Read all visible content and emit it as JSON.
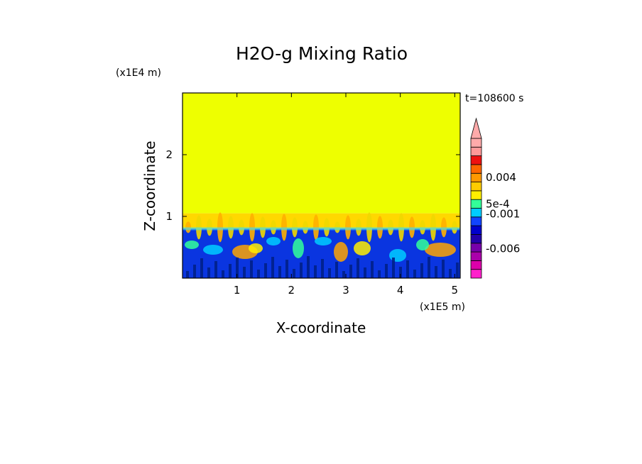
{
  "chart_data": {
    "type": "heatmap",
    "title": "H2O-g Mixing Ratio",
    "xlabel": "X-coordinate",
    "ylabel": "Z-coordinate",
    "x_unit": "(x1E5 m)",
    "y_unit": "(x1E4 m)",
    "time_label": "t=108600 s",
    "xlim": [
      0,
      5.1
    ],
    "ylim": [
      0,
      3.0
    ],
    "x_ticks": [
      "1",
      "2",
      "3",
      "4",
      "5"
    ],
    "x_tick_values": [
      1,
      2,
      3,
      4,
      5
    ],
    "y_ticks": [
      "1",
      "2"
    ],
    "y_tick_values": [
      1,
      2
    ],
    "layers": [
      {
        "level": "upper",
        "z_from": 1.05,
        "z_to": 3.0,
        "color": "#eeff00"
      },
      {
        "level": "transition",
        "z_from": 0.8,
        "z_to": 1.05,
        "color": "#ffd800"
      },
      {
        "level": "lower",
        "z_from": 0.0,
        "z_to": 0.8,
        "color": "#0a35e0"
      }
    ],
    "colorbar": {
      "colors": [
        "#ff22cc",
        "#dd00aa",
        "#aa00aa",
        "#7700aa",
        "#2200aa",
        "#0000cc",
        "#1144ff",
        "#00ccff",
        "#33ff99",
        "#ffee00",
        "#ffcc00",
        "#ff9900",
        "#ff6600",
        "#ee1111",
        "#ff9999",
        "#ffaaaa"
      ],
      "labels": [
        {
          "text": "0.004",
          "pos": 0.72
        },
        {
          "text": "5e-4",
          "pos": 0.53
        },
        {
          "text": "-0.001",
          "pos": 0.46
        },
        {
          "text": "-0.006",
          "pos": 0.21
        }
      ]
    }
  }
}
